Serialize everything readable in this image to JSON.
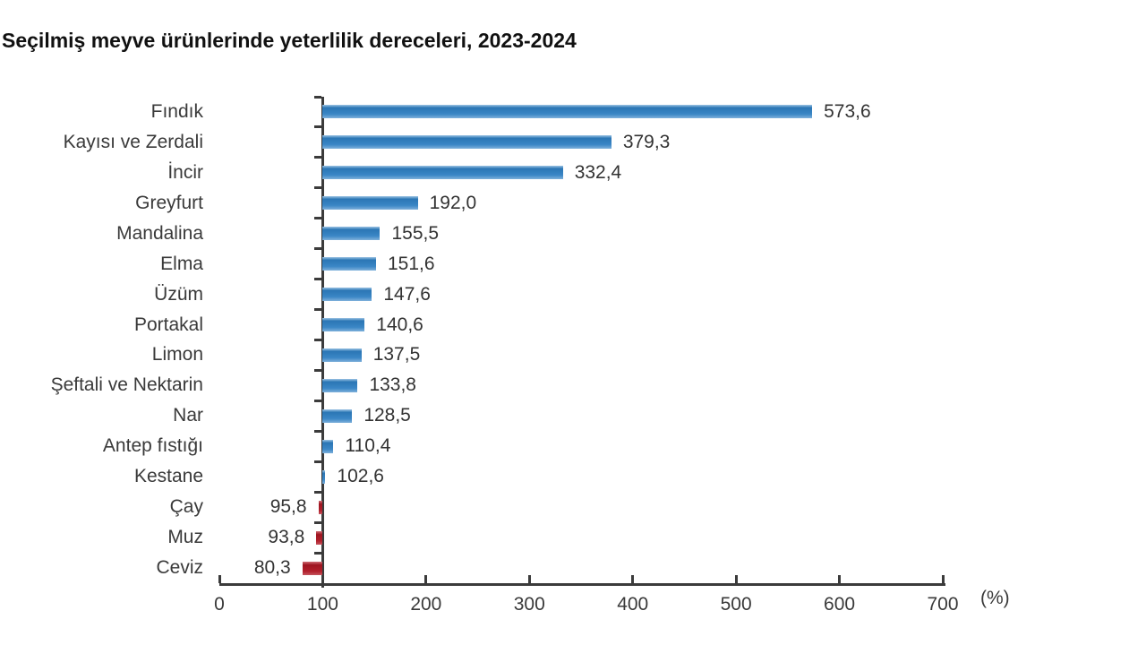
{
  "title": "Seçilmiş meyve ürünlerinde yeterlilik dereceleri, 2023-2024",
  "chart_data": {
    "type": "bar",
    "orientation": "horizontal",
    "baseline": 100,
    "categories": [
      "Fındık",
      "Kayısı ve Zerdali",
      "İncir",
      "Greyfurt",
      "Mandalina",
      "Elma",
      "Üzüm",
      "Portakal",
      "Limon",
      "Şeftali ve Nektarin",
      "Nar",
      "Antep fıstığı",
      "Kestane",
      "Çay",
      "Muz",
      "Ceviz"
    ],
    "values": [
      573.6,
      379.3,
      332.4,
      192.0,
      155.5,
      151.6,
      147.6,
      140.6,
      137.5,
      133.8,
      128.5,
      110.4,
      102.6,
      95.8,
      93.8,
      80.3
    ],
    "value_labels": [
      "573,6",
      "379,3",
      "332,4",
      "192,0",
      "155,5",
      "151,6",
      "147,6",
      "140,6",
      "137,5",
      "133,8",
      "128,5",
      "110,4",
      "102,6",
      "95,8",
      "93,8",
      "80,3"
    ],
    "x_ticks": [
      "0",
      "100",
      "200",
      "300",
      "400",
      "500",
      "600",
      "700"
    ],
    "x_tick_values": [
      0,
      100,
      200,
      300,
      400,
      500,
      600,
      700
    ],
    "xlim": [
      0,
      700
    ],
    "xlabel": "(%)",
    "legend": "none",
    "grid": "off",
    "colors": {
      "above_baseline": "#3080c0",
      "below_baseline": "#b01e2a",
      "axis": "#3b3b3b",
      "label_text": "#3a3a3a",
      "value_text": "#333333",
      "title_text": "#111111",
      "background": "#ffffff"
    }
  }
}
